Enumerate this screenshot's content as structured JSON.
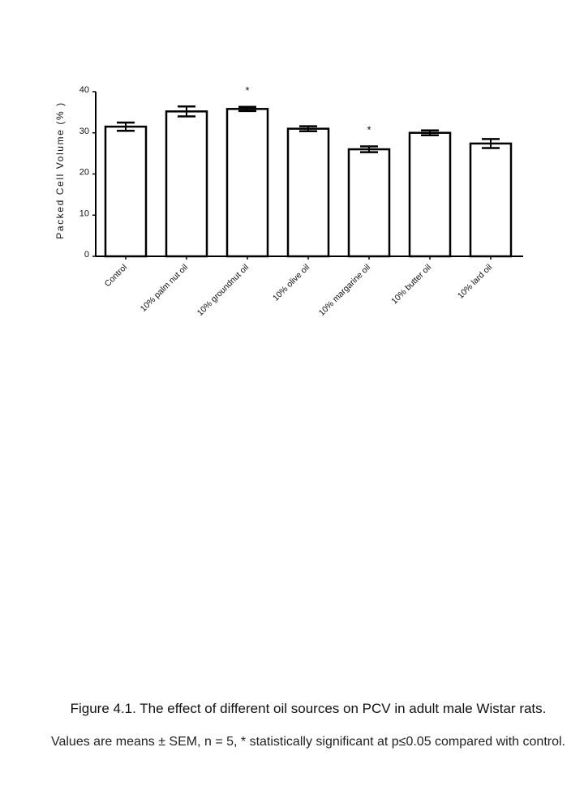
{
  "chart_data": {
    "type": "bar",
    "title": "",
    "xlabel": "",
    "ylabel": "Packed Cell Volume (% )",
    "ylim": [
      0,
      40
    ],
    "yticks": [
      "0",
      "10",
      "20",
      "30",
      "40"
    ],
    "grid": false,
    "categories": [
      "Control",
      "10% palm nut oil",
      "10% groundnut oil",
      "10% olive oil",
      "10% margarine oil",
      "10% butter oil",
      "10% lard oil"
    ],
    "values": [
      31.5,
      35.2,
      35.8,
      31.0,
      26.0,
      30.0,
      27.4
    ],
    "sem": [
      1.0,
      1.2,
      0.5,
      0.6,
      0.7,
      0.6,
      1.1
    ],
    "significance": [
      "",
      "",
      "*",
      "",
      "*",
      "",
      ""
    ],
    "colors": {
      "bar_fill": "#ffffff",
      "bar_stroke": "#000000"
    }
  },
  "caption": {
    "title": "Figure 4.1. The effect of different oil sources on PCV in adult male Wistar rats.",
    "note": "Values are means ± SEM, n = 5, * statistically significant at p≤0.05 compared with control."
  }
}
